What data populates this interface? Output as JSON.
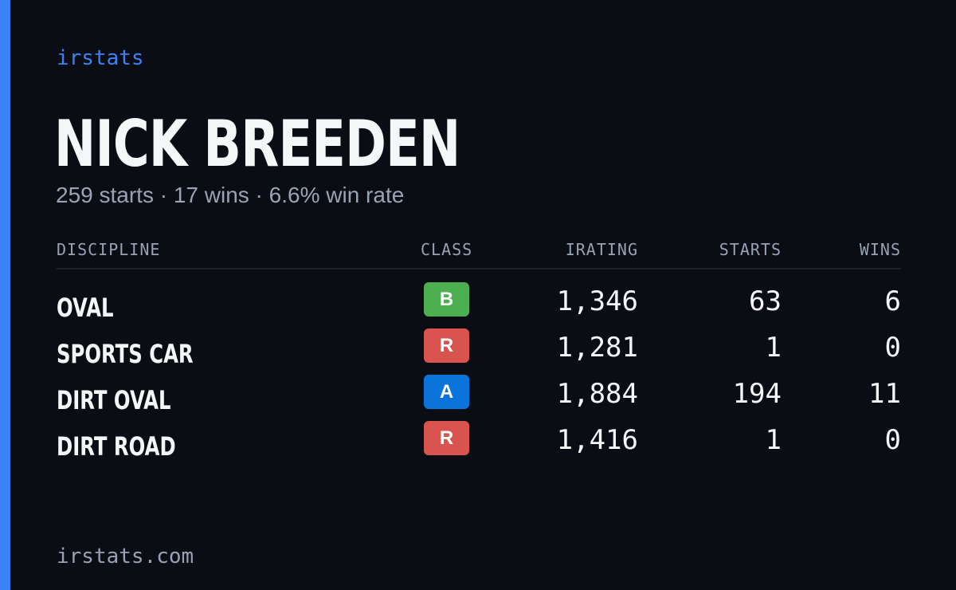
{
  "brand": "irstats",
  "driver": {
    "name": "NICK BREEDEN",
    "summary": "259 starts · 17 wins · 6.6% win rate"
  },
  "table": {
    "headers": {
      "discipline": "DISCIPLINE",
      "class": "CLASS",
      "irating": "IRATING",
      "starts": "STARTS",
      "wins": "WINS"
    },
    "rows": [
      {
        "discipline": "OVAL",
        "class": "B",
        "class_color": "#4caf50",
        "irating": "1,346",
        "starts": "63",
        "wins": "6"
      },
      {
        "discipline": "SPORTS CAR",
        "class": "R",
        "class_color": "#d9534f",
        "irating": "1,281",
        "starts": "1",
        "wins": "0"
      },
      {
        "discipline": "DIRT OVAL",
        "class": "A",
        "class_color": "#0a74da",
        "irating": "1,884",
        "starts": "194",
        "wins": "11"
      },
      {
        "discipline": "DIRT ROAD",
        "class": "R",
        "class_color": "#d9534f",
        "irating": "1,416",
        "starts": "1",
        "wins": "0"
      }
    ]
  },
  "footer": "irstats.com",
  "colors": {
    "accent": "#3b82f6",
    "background": "#0a0d14"
  }
}
